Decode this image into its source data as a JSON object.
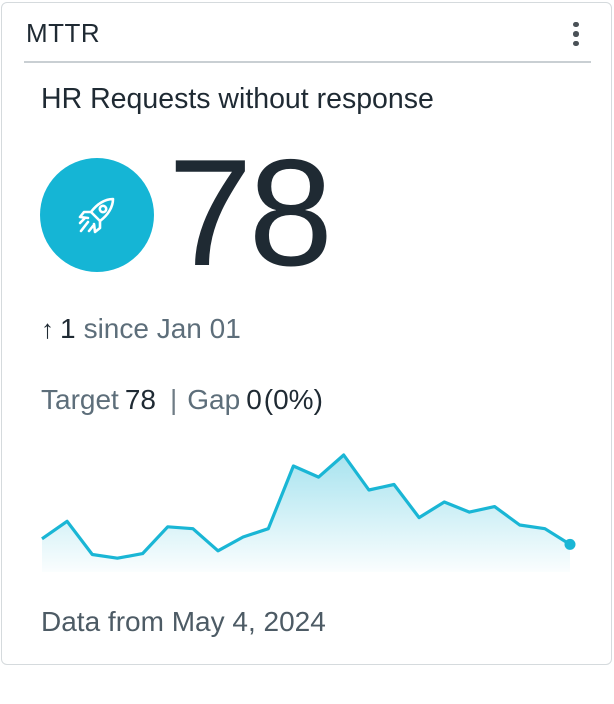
{
  "card": {
    "title": "MTTR",
    "menu_icon": "more-vertical-icon"
  },
  "metric": {
    "name": "HR Requests without response",
    "value": "78",
    "icon": "rocket-icon",
    "icon_bg": "#15b5d5"
  },
  "delta": {
    "arrow_icon": "arrow-up-icon",
    "arrow": "↑",
    "value": "1",
    "since": "since Jan 01"
  },
  "target": {
    "label": "Target",
    "value": "78",
    "separator": "|",
    "gap_label": "Gap",
    "gap_value": "0",
    "gap_percent": "(0%)"
  },
  "chart_data": {
    "type": "area",
    "series": [
      {
        "values": [
          36,
          55,
          19,
          15,
          20,
          49,
          47,
          23,
          38,
          47,
          115,
          103,
          127,
          89,
          95,
          59,
          76,
          65,
          71,
          51,
          47,
          30
        ]
      }
    ],
    "ylim": [
      0,
      140
    ],
    "grid": false,
    "line_color": "#1ab6d5",
    "fill_color": "#1ab6d5"
  },
  "footer": {
    "text": "Data from May 4, 2024"
  }
}
